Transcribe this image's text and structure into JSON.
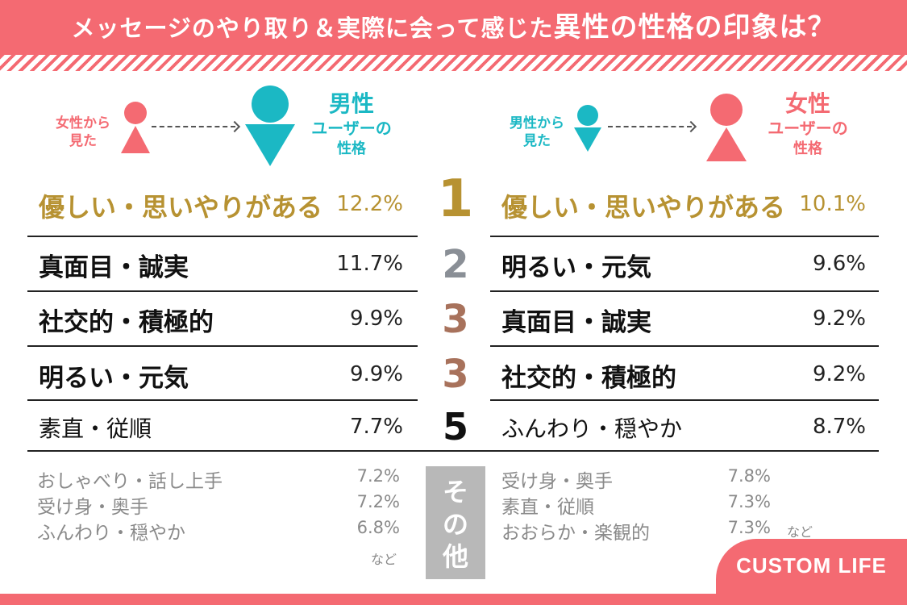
{
  "header": {
    "title_part1": "メッセージのやり取り＆実際に会って感じた",
    "title_part2": "異性の性格の印象は？"
  },
  "left": {
    "viewer_label_l1": "女性から",
    "viewer_label_l2": "見た",
    "target_big": "男性",
    "target_mid": "ユーザーの",
    "target_sm": "性格",
    "ranks": [
      {
        "item": "優しい・思いやりがある",
        "pct": "12.2%"
      },
      {
        "item": "真面目・誠実",
        "pct": "11.7%"
      },
      {
        "item": "社交的・積極的",
        "pct": "9.9%"
      },
      {
        "item": "明るい・元気",
        "pct": "9.9%"
      },
      {
        "item": "素直・従順",
        "pct": "7.7%"
      }
    ],
    "others": [
      {
        "item": "おしゃべり・話し上手",
        "pct": "7.2%"
      },
      {
        "item": "受け身・奥手",
        "pct": "7.2%"
      },
      {
        "item": "ふんわり・穏やか",
        "pct": "6.8%"
      }
    ],
    "nado": "など"
  },
  "right": {
    "viewer_label_l1": "男性から",
    "viewer_label_l2": "見た",
    "target_big": "女性",
    "target_mid": "ユーザーの",
    "target_sm": "性格",
    "ranks": [
      {
        "item": "優しい・思いやりがある",
        "pct": "10.1%"
      },
      {
        "item": "明るい・元気",
        "pct": "9.6%"
      },
      {
        "item": "真面目・誠実",
        "pct": "9.2%"
      },
      {
        "item": "社交的・積極的",
        "pct": "9.2%"
      },
      {
        "item": "ふんわり・穏やか",
        "pct": "8.7%"
      }
    ],
    "others": [
      {
        "item": "受け身・奥手",
        "pct": "7.8%"
      },
      {
        "item": "素直・従順",
        "pct": "7.3%"
      },
      {
        "item": "おおらか・楽観的",
        "pct": "7.3%"
      }
    ],
    "nado": "など"
  },
  "rank_numbers": [
    "1",
    "2",
    "3",
    "3",
    "5"
  ],
  "other_label": "その他",
  "brand": "CUSTOM LIFE",
  "colors": {
    "pink": "#f46a72",
    "teal": "#1bb8c4",
    "gold": "#b79232",
    "silver": "#8a8f96",
    "bronze": "#a8725c",
    "gray": "#8a8a8a"
  },
  "icons": {
    "female": "female-person-icon",
    "male": "male-person-icon",
    "arrow": "dashed-arrow-icon"
  }
}
